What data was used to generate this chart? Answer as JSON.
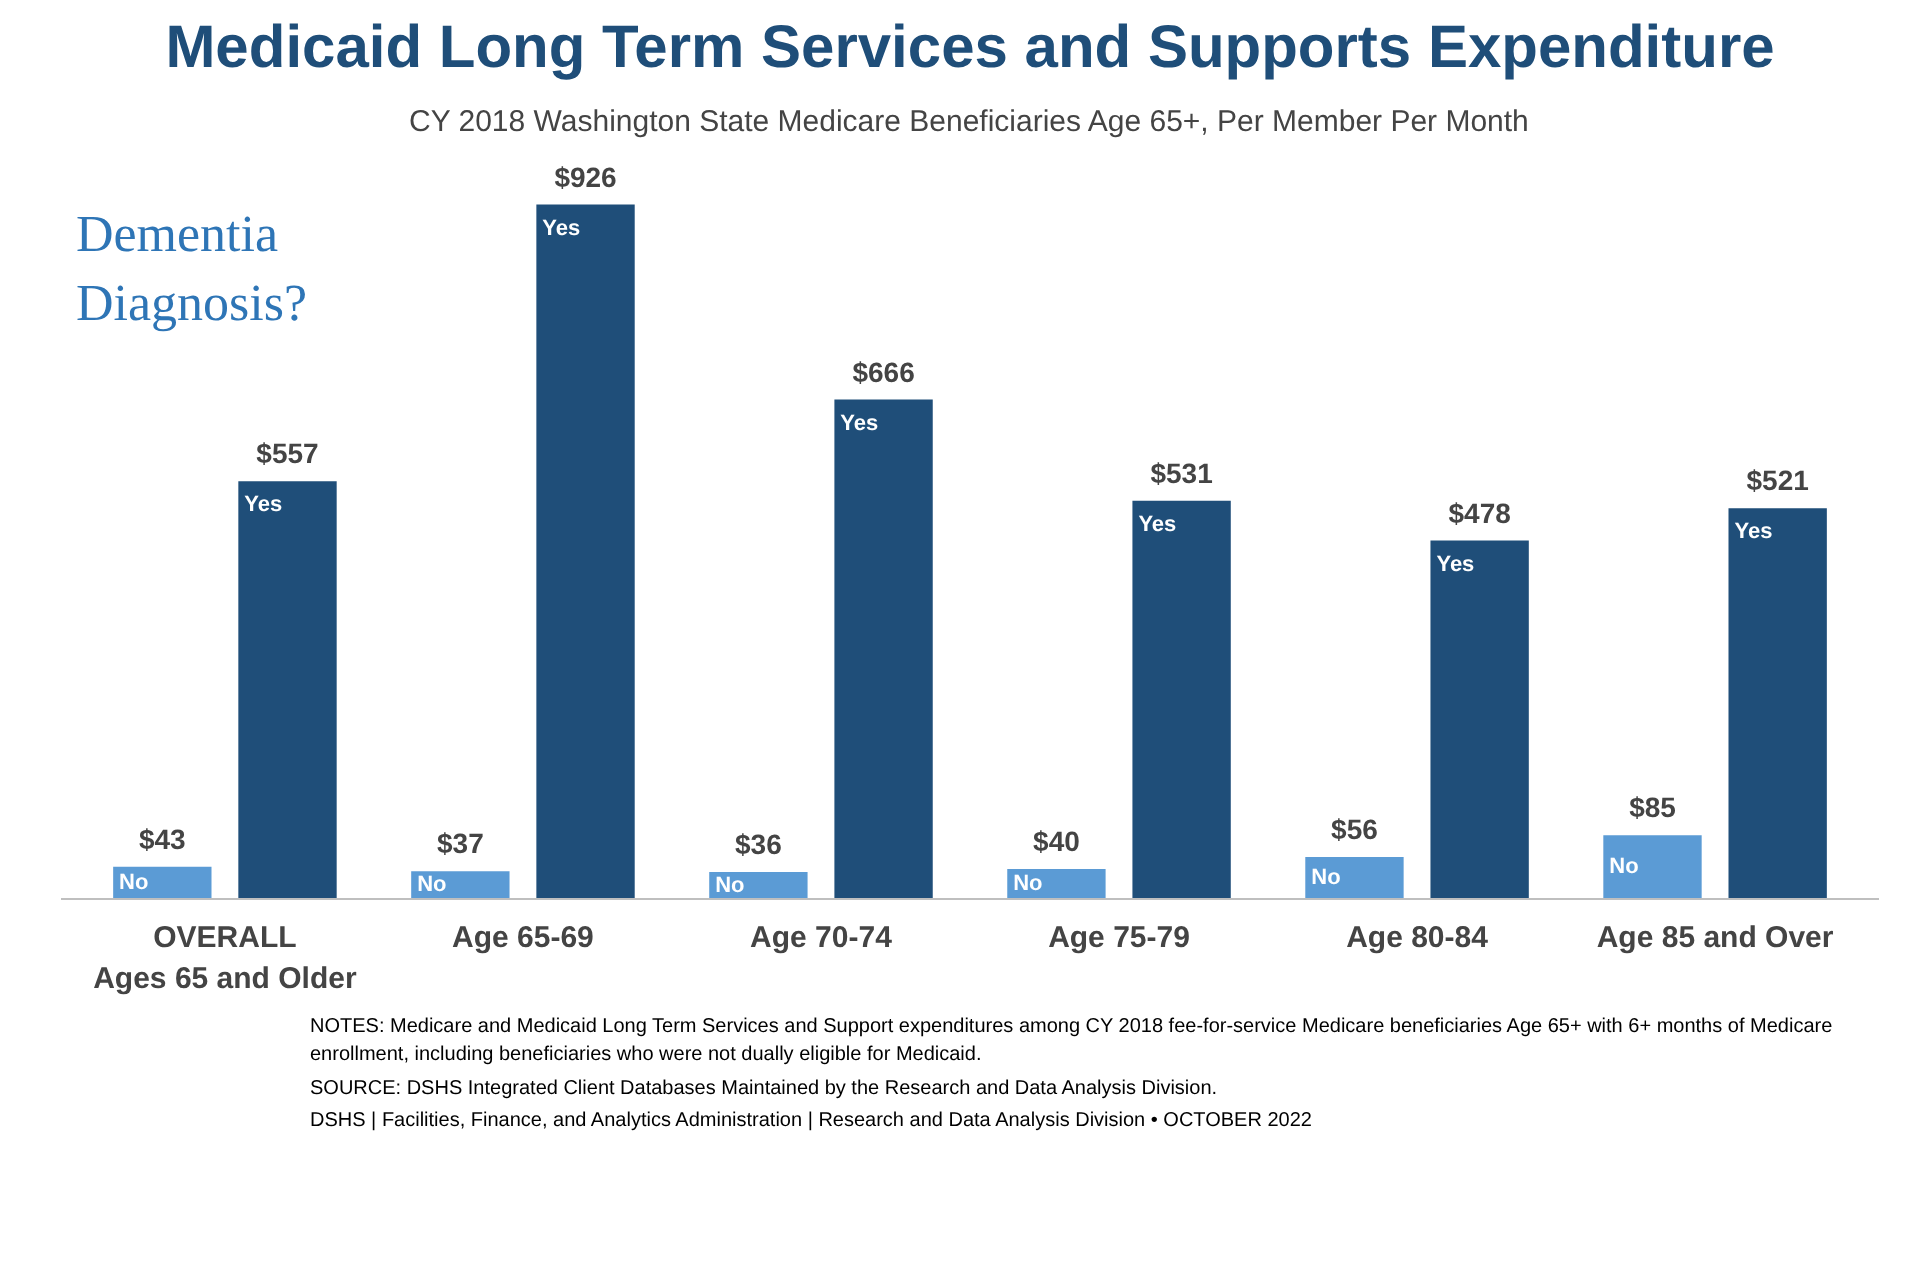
{
  "chart_data": {
    "type": "bar",
    "title": "Medicaid Long Term Services and Supports Expenditure",
    "subtitle": "CY 2018 Washington State Medicare Beneficiaries Age 65+, Per Member Per Month",
    "categories": [
      "OVERALL",
      "Age 65-69",
      "Age 70-74",
      "Age 75-79",
      "Age 80-84",
      "Age 85 and Over"
    ],
    "series": [
      {
        "name": "No",
        "color": "#5b9bd5",
        "values": [
          43,
          37,
          36,
          40,
          56,
          85
        ],
        "value_labels": [
          "$43",
          "$37",
          "$36",
          "$40",
          "$56",
          "$85"
        ]
      },
      {
        "name": "Yes",
        "color": "#1f4e79",
        "values": [
          557,
          926,
          666,
          531,
          478,
          521
        ],
        "value_labels": [
          "$557",
          "$926",
          "$666",
          "$531",
          "$478",
          "$521"
        ]
      }
    ],
    "grid": false,
    "annotations": [
      "Dementia Diagnosis?",
      "Ages 65 and Older",
      "NOTES: Medicare and Medicaid Long Term Services and Support expenditures among CY 2018 fee-for-service Medicare beneficiaries Age 65+ with 6+ months of Medicare enrollment, including beneficiaries who were not dually eligible for Medicaid.",
      "SOURCE: DSHS Integrated Client Databases Maintained by the Research and Data Analysis Division.",
      "DSHS | Facilities, Finance, and Analytics Administration | Research and Data Analysis Division • OCTOBER 2022"
    ]
  }
}
